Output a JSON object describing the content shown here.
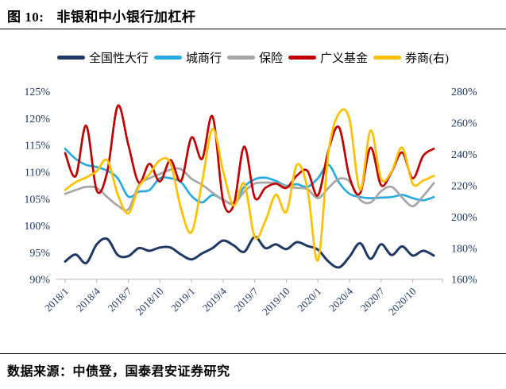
{
  "header": {
    "figure_label": "图 10:",
    "title": "非银和中小银行加杠杆"
  },
  "footer": {
    "source": "数据来源：中债登，国泰君安证券研究"
  },
  "style": {
    "label_color": "#1F3864",
    "axis_line_color": "#BFBFBF",
    "rule_color": "#000000",
    "background": "#FFFFFF"
  },
  "chart_data": {
    "type": "line",
    "title": "非银和中小银行加杠杆",
    "categories": [
      "2018/1",
      "2018/2",
      "2018/3",
      "2018/4",
      "2018/5",
      "2018/6",
      "2018/7",
      "2018/8",
      "2018/9",
      "2018/10",
      "2018/11",
      "2018/12",
      "2019/1",
      "2019/2",
      "2019/3",
      "2019/4",
      "2019/5",
      "2019/6",
      "2019/7",
      "2019/8",
      "2019/9",
      "2019/10",
      "2019/11",
      "2019/12",
      "2020/1",
      "2020/2",
      "2020/3",
      "2020/4",
      "2020/5",
      "2020/6",
      "2020/7",
      "2020/8",
      "2020/9",
      "2020/10",
      "2020/11",
      "2020/12"
    ],
    "x_tick_indices": [
      0,
      3,
      6,
      9,
      12,
      15,
      18,
      21,
      24,
      27,
      30,
      33
    ],
    "x_tick_labels": [
      "2018/1",
      "2018/4",
      "2018/7",
      "2018/10",
      "2019/1",
      "2019/4",
      "2019/7",
      "2019/10",
      "2020/1",
      "2020/4",
      "2020/7",
      "2020/10"
    ],
    "series": [
      {
        "name": "全国性大行",
        "axis": "left",
        "color": "#1F3864",
        "values": [
          93.3,
          94.6,
          93.0,
          96.5,
          97.5,
          94.5,
          94.3,
          95.8,
          95.3,
          95.9,
          95.9,
          94.6,
          93.7,
          94.8,
          95.8,
          97.2,
          96.3,
          95.1,
          97.9,
          95.8,
          96.5,
          95.6,
          96.9,
          96.2,
          95.5,
          93.3,
          92.2,
          94.2,
          96.7,
          93.8,
          96.5,
          94.5,
          96.1,
          94.4,
          95.3,
          94.4
        ]
      },
      {
        "name": "城商行",
        "axis": "left",
        "color": "#29ABE2",
        "values": [
          114.3,
          112.4,
          111.3,
          110.9,
          110.2,
          108.8,
          105.4,
          106.3,
          106.6,
          108.8,
          108.8,
          108.1,
          105.5,
          104.3,
          105.7,
          104.8,
          104.2,
          107.2,
          108.6,
          108.9,
          108.3,
          107.4,
          107.7,
          107.2,
          108.8,
          111.3,
          108.0,
          105.9,
          105.3,
          105.1,
          105.2,
          105.3,
          105.7,
          105.1,
          104.7,
          105.3
        ]
      },
      {
        "name": "保险",
        "axis": "left",
        "color": "#A6A6A6",
        "values": [
          105.9,
          106.6,
          107.2,
          107.0,
          105.3,
          103.7,
          103.0,
          107.5,
          108.8,
          109.6,
          110.4,
          110.5,
          108.7,
          107.6,
          106.1,
          104.8,
          104.0,
          106.3,
          107.8,
          108.0,
          107.9,
          107.3,
          107.0,
          106.8,
          105.1,
          107.0,
          108.7,
          108.2,
          104.8,
          104.3,
          106.4,
          107.2,
          105.2,
          103.6,
          105.5,
          107.9
        ]
      },
      {
        "name": "广义基金",
        "axis": "left",
        "color": "#C00000",
        "values": [
          113.5,
          109.2,
          118.6,
          106.5,
          110.0,
          122.3,
          115.0,
          108.0,
          111.5,
          108.2,
          112.2,
          108.3,
          116.4,
          112.4,
          120.3,
          104.6,
          103.8,
          114.7,
          105.2,
          107.0,
          107.8,
          107.0,
          109.3,
          110.2,
          105.6,
          114.0,
          118.3,
          109.0,
          106.0,
          114.5,
          107.5,
          110.0,
          113.6,
          108.8,
          113.0,
          114.3
        ]
      },
      {
        "name": "券商(右)",
        "axis": "right",
        "color": "#FFC000",
        "values": [
          217,
          222,
          225,
          229,
          236,
          214,
          202,
          219,
          227,
          236,
          234,
          205,
          190,
          222,
          256,
          229,
          207,
          221,
          187,
          197,
          214,
          203,
          233,
          218,
          172,
          241,
          266,
          262,
          217,
          255,
          224,
          229,
          244,
          221,
          223,
          226
        ]
      }
    ],
    "left_axis": {
      "min": 90,
      "max": 125,
      "step": 5,
      "suffix": "%",
      "tick_labels": [
        "90%",
        "95%",
        "100%",
        "105%",
        "110%",
        "115%",
        "120%",
        "125%"
      ]
    },
    "right_axis": {
      "min": 160,
      "max": 280,
      "step": 20,
      "suffix": "%",
      "tick_labels": [
        "160%",
        "180%",
        "200%",
        "220%",
        "240%",
        "260%",
        "280%"
      ]
    },
    "grid": false,
    "legend_position": "top"
  }
}
